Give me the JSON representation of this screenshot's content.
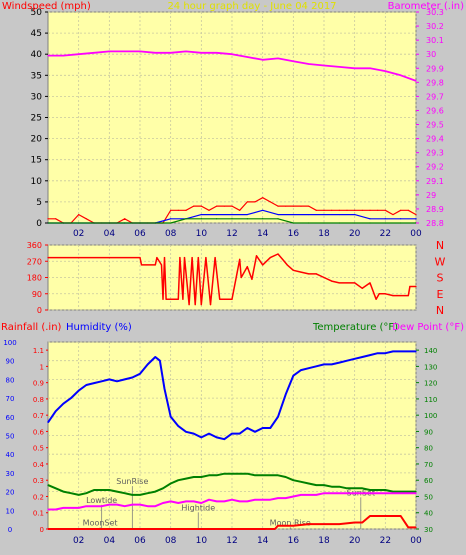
{
  "chart_data": [
    {
      "type": "line",
      "title": "24 hour graph day - June 04 2017",
      "left_axis_label": "Windspeed (mph)",
      "right_axis_label": "Barometer (.in)",
      "x_ticks": [
        "02",
        "04",
        "06",
        "08",
        "10",
        "12",
        "14",
        "16",
        "18",
        "20",
        "22",
        "00"
      ],
      "left_ticks": [
        "0",
        "5",
        "10",
        "15",
        "20",
        "25",
        "30",
        "35",
        "40",
        "45",
        "50"
      ],
      "right_ticks": [
        "28.8",
        "28.9",
        "29",
        "29.1",
        "29.2",
        "29.3",
        "29.4",
        "29.5",
        "29.6",
        "29.7",
        "29.8",
        "29.9",
        "30",
        "30.1",
        "30.2",
        "30.3"
      ],
      "left_ylim": [
        0,
        50
      ],
      "right_ylim": [
        28.8,
        30.3
      ],
      "series": [
        {
          "name": "Barometer (.in)",
          "color": "#ff00ff",
          "axis": "right",
          "x": [
            0,
            1,
            2,
            3,
            4,
            5,
            6,
            7,
            8,
            9,
            10,
            11,
            12,
            13,
            14,
            15,
            16,
            17,
            18,
            19,
            20,
            21,
            22,
            23,
            24
          ],
          "y": [
            29.99,
            29.99,
            30.0,
            30.01,
            30.02,
            30.02,
            30.02,
            30.01,
            30.01,
            30.02,
            30.01,
            30.01,
            30.0,
            29.98,
            29.96,
            29.97,
            29.95,
            29.93,
            29.92,
            29.91,
            29.9,
            29.9,
            29.88,
            29.85,
            29.81
          ]
        },
        {
          "name": "",
          "color": "#ff0000",
          "axis": "left",
          "x": [
            0,
            0.5,
            1,
            1.5,
            2,
            2.5,
            3,
            3.5,
            4,
            4.5,
            5,
            5.5,
            6,
            6.5,
            7,
            7.5,
            8,
            8.5,
            9,
            9.5,
            10,
            10.5,
            11,
            11.5,
            12,
            12.5,
            13,
            13.5,
            14,
            14.5,
            15,
            15.5,
            16,
            16.5,
            17,
            17.5,
            18,
            18.5,
            19,
            19.5,
            20,
            20.5,
            21,
            21.5,
            22,
            22.5,
            23,
            23.5,
            24
          ],
          "y": [
            1,
            1,
            0,
            0,
            2,
            1,
            0,
            0,
            0,
            0,
            1,
            0,
            0,
            0,
            0,
            0,
            3,
            3,
            3,
            4,
            4,
            3,
            4,
            4,
            4,
            3,
            5,
            5,
            6,
            5,
            4,
            4,
            4,
            4,
            4,
            3,
            3,
            3,
            3,
            3,
            3,
            3,
            3,
            3,
            3,
            2,
            3,
            3,
            2
          ]
        },
        {
          "name": "",
          "color": "#0000ff",
          "axis": "left",
          "x": [
            0,
            1,
            2,
            3,
            4,
            5,
            6,
            7,
            8,
            9,
            10,
            11,
            12,
            13,
            14,
            15,
            16,
            17,
            18,
            19,
            20,
            21,
            22,
            23,
            24
          ],
          "y": [
            0,
            0,
            0,
            0,
            0,
            0,
            0,
            0,
            1,
            1,
            2,
            2,
            2,
            2,
            3,
            2,
            2,
            2,
            2,
            2,
            2,
            1,
            1,
            1,
            1
          ]
        },
        {
          "name": "",
          "color": "#008000",
          "axis": "left",
          "x": [
            0,
            1,
            2,
            3,
            4,
            5,
            6,
            7,
            8,
            9,
            10,
            11,
            12,
            13,
            14,
            15,
            16,
            17,
            18,
            19,
            20,
            21,
            22,
            23,
            24
          ],
          "y": [
            0,
            0,
            0,
            0,
            0,
            0,
            0,
            0,
            0,
            1,
            1,
            1,
            1,
            1,
            1,
            1,
            0,
            0,
            0,
            0,
            0,
            0,
            0,
            0,
            0
          ]
        }
      ]
    },
    {
      "type": "line",
      "left_ticks": [
        "0",
        "90",
        "180",
        "270",
        "360"
      ],
      "right_labels": [
        "N",
        "W",
        "S",
        "E",
        "N"
      ],
      "ylim": [
        0,
        360
      ],
      "series": [
        {
          "name": "",
          "color": "#ff0000",
          "x": [
            0,
            6.0,
            6.1,
            7.0,
            7.1,
            7.4,
            7.5,
            7.6,
            7.7,
            8.0,
            8.3,
            8.5,
            8.6,
            8.8,
            8.9,
            9.2,
            9.4,
            9.6,
            9.8,
            10.0,
            10.3,
            10.6,
            10.9,
            11.2,
            11.5,
            11.8,
            12.0,
            12.5,
            12.6,
            13.0,
            13.3,
            13.6,
            14.0,
            14.5,
            15.0,
            15.3,
            15.6,
            16.0,
            16.5,
            17.0,
            17.5,
            18.0,
            18.5,
            19.0,
            19.5,
            20.0,
            20.5,
            21.0,
            21.4,
            21.6,
            22.0,
            22.5,
            23.0,
            23.5,
            23.6,
            24.0
          ],
          "y": [
            290,
            290,
            250,
            250,
            290,
            250,
            60,
            290,
            60,
            60,
            60,
            60,
            290,
            60,
            290,
            30,
            290,
            30,
            290,
            30,
            290,
            30,
            290,
            60,
            60,
            60,
            60,
            280,
            180,
            240,
            170,
            300,
            250,
            290,
            310,
            280,
            250,
            220,
            210,
            200,
            200,
            180,
            160,
            150,
            150,
            150,
            120,
            150,
            60,
            90,
            90,
            80,
            80,
            80,
            130,
            130
          ]
        }
      ]
    },
    {
      "type": "line",
      "left_axis_label_1": "Rainfall (.in)",
      "left_axis_label_2": "Humidity (%)",
      "right_axis_label_1": "Temperature (°F)",
      "right_axis_label_2": "Dew Point (°F)",
      "x_ticks": [
        "02",
        "04",
        "06",
        "08",
        "10",
        "12",
        "14",
        "16",
        "18",
        "20",
        "22",
        "00"
      ],
      "hum_ticks": [
        "0",
        "10",
        "20",
        "30",
        "40",
        "50",
        "60",
        "70",
        "80",
        "90",
        "100"
      ],
      "rain_ticks": [
        "0",
        "0.1",
        "0.2",
        "0.3",
        "0.4",
        "0.5",
        "0.6",
        "0.7",
        "0.8",
        "0.9",
        "1",
        "1.1"
      ],
      "temp_ticks": [
        "30",
        "40",
        "50",
        "60",
        "70",
        "80",
        "90",
        "100",
        "110",
        "120",
        "130",
        "140"
      ],
      "rain_ylim": [
        0,
        1.15
      ],
      "hum_ylim": [
        0,
        100
      ],
      "temp_ylim": [
        30,
        145
      ],
      "annotations": [
        {
          "text": "Lowtide",
          "x": 3.5,
          "y": 14
        },
        {
          "text": "SunRise",
          "x": 5.5,
          "y": 24
        },
        {
          "text": "MoonSet",
          "x": 3.4,
          "y": 2
        },
        {
          "text": "Hightide",
          "x": 9.8,
          "y": 10
        },
        {
          "text": "Moon Rise",
          "x": 15.8,
          "y": 2
        },
        {
          "text": "SunSet",
          "x": 20.4,
          "y": 18
        }
      ],
      "series": [
        {
          "name": "Humidity (%)",
          "color": "#0000ff",
          "axis": "hum",
          "x": [
            0,
            0.5,
            1,
            1.5,
            2,
            2.5,
            3,
            3.5,
            4,
            4.5,
            5,
            5.5,
            6,
            6.5,
            7,
            7.3,
            7.6,
            8,
            8.5,
            9,
            9.5,
            10,
            10.5,
            11,
            11.5,
            12,
            12.5,
            13,
            13.5,
            14,
            14.5,
            15,
            15.5,
            16,
            16.5,
            17,
            17.5,
            18,
            18.5,
            19,
            19.5,
            20,
            20.5,
            21,
            21.5,
            22,
            22.5,
            23,
            23.5,
            24
          ],
          "y": [
            57,
            63,
            67,
            70,
            74,
            77,
            78,
            79,
            80,
            79,
            80,
            81,
            83,
            88,
            92,
            90,
            75,
            60,
            55,
            52,
            51,
            49,
            51,
            49,
            48,
            51,
            51,
            54,
            52,
            54,
            54,
            60,
            72,
            82,
            85,
            86,
            87,
            88,
            88,
            89,
            90,
            91,
            92,
            93,
            94,
            94,
            95,
            95,
            95,
            95
          ]
        },
        {
          "name": "Temperature (°F)",
          "color": "#008000",
          "axis": "temp",
          "x": [
            0,
            0.5,
            1,
            1.5,
            2,
            2.5,
            3,
            3.5,
            4,
            4.5,
            5,
            5.5,
            6,
            6.5,
            7,
            7.5,
            8,
            8.5,
            9,
            9.5,
            10,
            10.5,
            11,
            11.5,
            12,
            12.5,
            13,
            13.5,
            14,
            14.5,
            15,
            15.5,
            16,
            16.5,
            17,
            17.5,
            18,
            18.5,
            19,
            19.5,
            20,
            20.5,
            21,
            21.5,
            22,
            22.5,
            23,
            23.5,
            24
          ],
          "y": [
            57,
            55,
            53,
            52,
            51,
            52,
            54,
            54,
            54,
            53,
            52,
            51,
            51,
            52,
            53,
            55,
            58,
            60,
            61,
            62,
            62,
            63,
            63,
            64,
            64,
            64,
            64,
            63,
            63,
            63,
            63,
            62,
            60,
            59,
            58,
            57,
            57,
            56,
            56,
            55,
            55,
            55,
            54,
            54,
            54,
            53,
            53,
            53,
            53
          ]
        },
        {
          "name": "Dew Point (°F)",
          "color": "#ff00ff",
          "axis": "temp",
          "x": [
            0,
            0.5,
            1,
            1.5,
            2,
            2.5,
            3,
            3.5,
            4,
            4.5,
            5,
            5.5,
            6,
            6.5,
            7,
            7.5,
            8,
            8.5,
            9,
            9.5,
            10,
            10.5,
            11,
            11.5,
            12,
            12.5,
            13,
            13.5,
            14,
            14.5,
            15,
            15.5,
            16,
            16.5,
            17,
            17.5,
            18,
            18.5,
            19,
            19.5,
            20,
            20.5,
            21,
            21.5,
            22,
            22.5,
            23,
            23.5,
            24
          ],
          "y": [
            42,
            42,
            43,
            43,
            43,
            44,
            44,
            44,
            45,
            45,
            44,
            45,
            45,
            44,
            44,
            46,
            47,
            46,
            47,
            47,
            46,
            48,
            47,
            47,
            48,
            47,
            47,
            48,
            48,
            48,
            49,
            49,
            50,
            51,
            51,
            51,
            52,
            52,
            52,
            52,
            52,
            52,
            52,
            52,
            52,
            52,
            52,
            52,
            52
          ]
        },
        {
          "name": "Rainfall (.in)",
          "color": "#ff0000",
          "axis": "rain",
          "x": [
            0,
            14.8,
            15.0,
            15.2,
            16.0,
            17.0,
            18.0,
            19.0,
            20.0,
            20.5,
            21.0,
            22.0,
            22.5,
            23.0,
            23.5,
            24.0
          ],
          "y": [
            0,
            0,
            0.02,
            0.02,
            0.02,
            0.03,
            0.03,
            0.03,
            0.04,
            0.04,
            0.08,
            0.08,
            0.08,
            0.08,
            0.01,
            0.01
          ]
        }
      ]
    }
  ]
}
